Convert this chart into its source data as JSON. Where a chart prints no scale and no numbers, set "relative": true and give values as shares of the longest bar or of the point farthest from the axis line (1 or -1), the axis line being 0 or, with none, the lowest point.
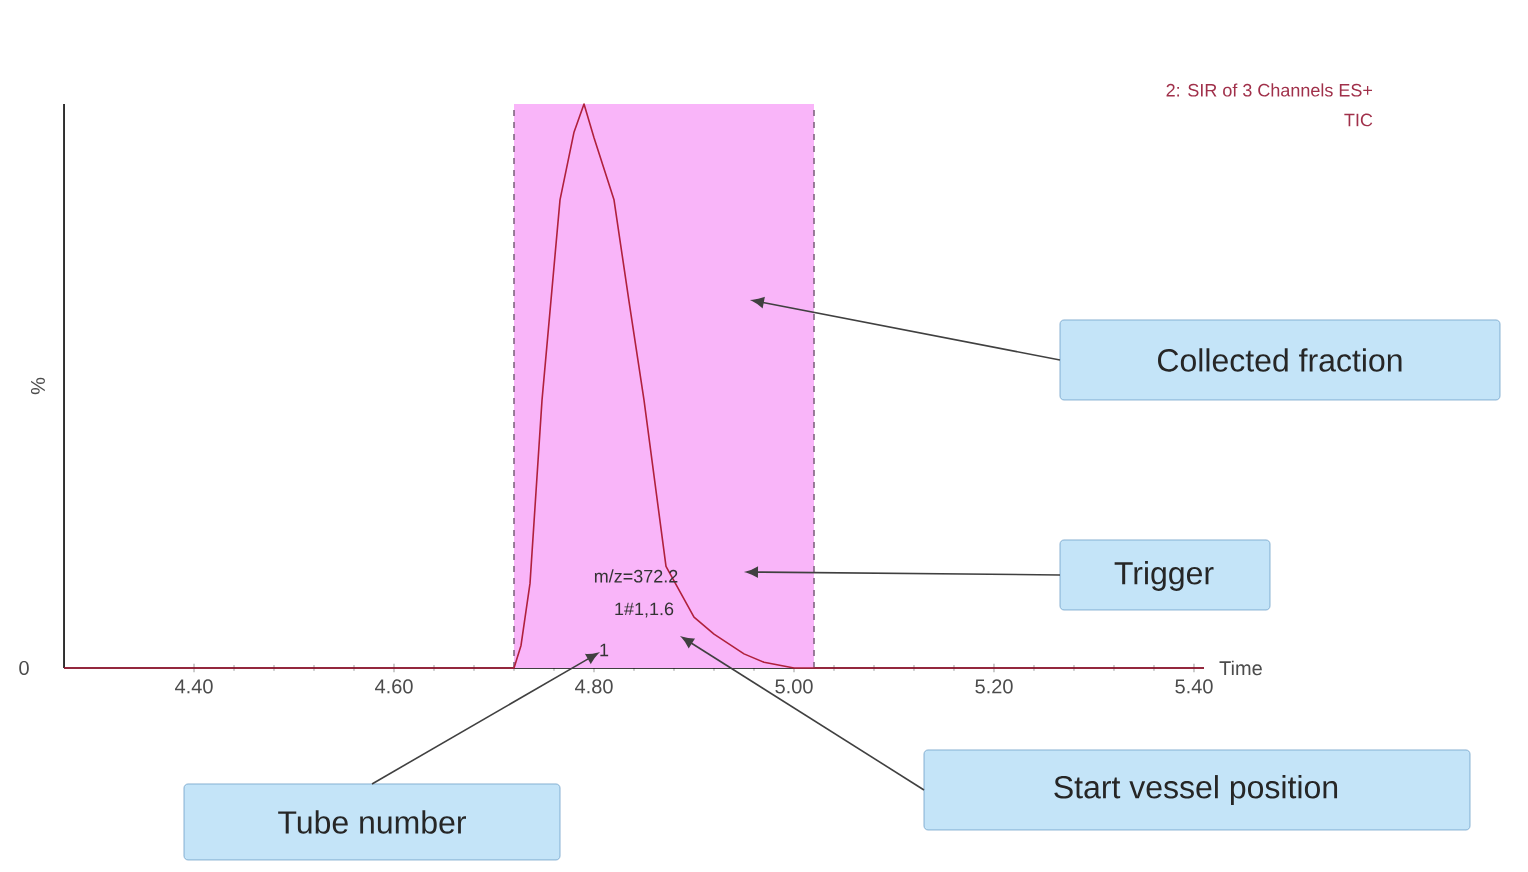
{
  "chart_data": {
    "type": "line",
    "title": "2: SIR of 3 Channels ES+",
    "subtitle": "TIC",
    "xlabel": "Time",
    "ylabel": "%",
    "relative": true,
    "xlim": [
      4.27,
      5.41
    ],
    "xticks": [
      {
        "value": 4.4,
        "label": "4.40"
      },
      {
        "value": 4.6,
        "label": "4.60"
      },
      {
        "value": 4.8,
        "label": "4.80"
      },
      {
        "value": 5.0,
        "label": "5.00"
      },
      {
        "value": 5.2,
        "label": "5.20"
      },
      {
        "value": 5.4,
        "label": "5.40"
      }
    ],
    "series": [
      {
        "color": "#b0203c",
        "x": [
          4.27,
          4.72,
          4.727,
          4.736,
          4.748,
          4.766,
          4.78,
          4.79,
          4.8,
          4.82,
          4.835,
          4.85,
          4.872,
          4.9,
          4.92,
          4.95,
          4.97,
          5.0,
          5.41
        ],
        "values": [
          0,
          0,
          0.04,
          0.15,
          0.475,
          0.83,
          0.95,
          1.0,
          0.94,
          0.83,
          0.65,
          0.475,
          0.18,
          0.09,
          0.06,
          0.025,
          0.01,
          0,
          0
        ]
      }
    ],
    "bands": [
      {
        "axis": "x",
        "from": 4.72,
        "to": 5.02,
        "color": "#f9b5f9"
      }
    ],
    "ref_lines": [
      {
        "axis": "x",
        "value": 4.72,
        "color": "#806680",
        "line_style": "dashed"
      },
      {
        "axis": "x",
        "value": 5.02,
        "color": "#806680",
        "line_style": "dashed"
      }
    ],
    "annotations": [
      "Collected fraction",
      "Trigger",
      "Tube number",
      "Start vessel position",
      "0",
      "m/z=372.2",
      "1#1,1.6",
      "1"
    ]
  }
}
